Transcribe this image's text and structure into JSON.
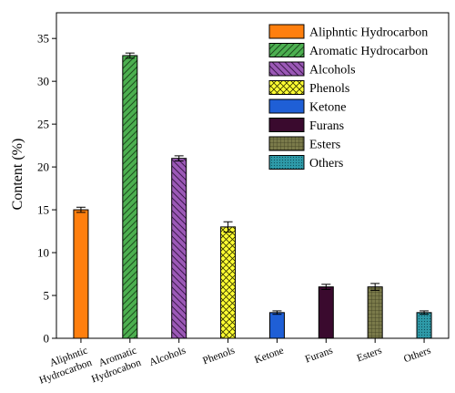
{
  "chart_data": {
    "type": "bar",
    "title": "",
    "xlabel": "",
    "ylabel": "Content (%)",
    "ylim": [
      0,
      38
    ],
    "yticks": [
      0,
      5,
      10,
      15,
      20,
      25,
      30,
      35
    ],
    "grid": false,
    "legend_position": "top-right",
    "categories": [
      [
        "Aliphntic",
        "Hydrocarbon"
      ],
      [
        "Aromatic",
        "Hydrocabon"
      ],
      [
        "Alcohols"
      ],
      [
        "Phenols"
      ],
      [
        "Ketone"
      ],
      [
        "Furans"
      ],
      [
        "Esters"
      ],
      [
        "Others"
      ]
    ],
    "series": [
      {
        "name": "Aliphntic Hydrocarbon",
        "value": 15.0,
        "error": 0.3,
        "color": "#ff7f0e",
        "pattern": "solid"
      },
      {
        "name": "Aromatic Hydrocarbon",
        "value": 33.0,
        "error": 0.3,
        "color": "#4caf50",
        "pattern": "diag-fwd"
      },
      {
        "name": "Alcohols",
        "value": 21.0,
        "error": 0.3,
        "color": "#9b59b6",
        "pattern": "diag-back"
      },
      {
        "name": "Phenols",
        "value": 13.0,
        "error": 0.6,
        "color": "#ffff33",
        "pattern": "cross"
      },
      {
        "name": "Ketone",
        "value": 3.0,
        "error": 0.2,
        "color": "#1f5fd6",
        "pattern": "solid"
      },
      {
        "name": "Furans",
        "value": 6.0,
        "error": 0.3,
        "color": "#3a0a2e",
        "pattern": "solid"
      },
      {
        "name": "Esters",
        "value": 6.0,
        "error": 0.4,
        "color": "#7a7a4a",
        "pattern": "grid"
      },
      {
        "name": "Others",
        "value": 3.0,
        "error": 0.2,
        "color": "#2e9aa8",
        "pattern": "dots"
      }
    ]
  }
}
